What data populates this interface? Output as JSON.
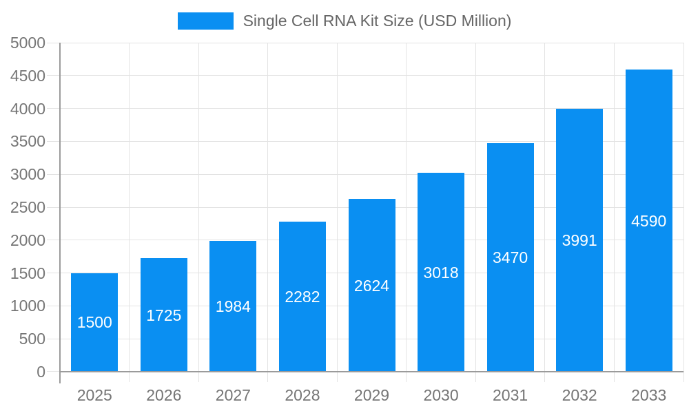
{
  "chart_data": {
    "type": "bar",
    "title": "Single Cell RNA Kit Size (USD Million)",
    "legend_label": "Single Cell RNA Kit Size (USD Million)",
    "legend_position": "top-center",
    "categories": [
      "2025",
      "2026",
      "2027",
      "2028",
      "2029",
      "2030",
      "2031",
      "2032",
      "2033"
    ],
    "values": [
      1500,
      1725,
      1984,
      2282,
      2624,
      3018,
      3470,
      3991,
      4590
    ],
    "value_labels": [
      "1500",
      "1725",
      "1984",
      "2282",
      "2624",
      "3018",
      "3470",
      "3991",
      "4590"
    ],
    "value_label_position": "inside-center",
    "xlabel": "",
    "ylabel": "",
    "ylim": [
      0,
      5000
    ],
    "y_ticks": [
      0,
      500,
      1000,
      1500,
      2000,
      2500,
      3000,
      3500,
      4000,
      4500,
      5000
    ],
    "grid": true,
    "colors": {
      "bar": "#0a8ff2",
      "value_label": "#ffffff",
      "axis_tick_label": "#757575",
      "legend_text": "#666666",
      "gridline": "#e3e3e3",
      "axis_line": "#9b9b9b",
      "background": "#ffffff"
    }
  }
}
